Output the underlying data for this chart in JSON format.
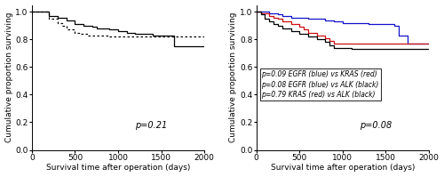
{
  "panel_A": {
    "title_annotation": "p=0.21",
    "solid_line": {
      "x": [
        0,
        50,
        200,
        300,
        400,
        500,
        600,
        700,
        750,
        900,
        1000,
        1100,
        1200,
        1300,
        1400,
        1500,
        1550,
        1650,
        1700,
        2000
      ],
      "y": [
        1.0,
        1.0,
        0.97,
        0.96,
        0.94,
        0.91,
        0.9,
        0.89,
        0.88,
        0.87,
        0.86,
        0.85,
        0.84,
        0.84,
        0.83,
        0.83,
        0.83,
        0.75,
        0.75,
        0.75
      ],
      "color": "black",
      "linestyle": "solid"
    },
    "dotted_line": {
      "x": [
        0,
        50,
        200,
        300,
        350,
        400,
        500,
        550,
        650,
        700,
        800,
        900,
        1000,
        1100,
        1200,
        1400,
        1500,
        1600,
        1700,
        2000
      ],
      "y": [
        1.0,
        1.0,
        0.95,
        0.92,
        0.9,
        0.87,
        0.85,
        0.84,
        0.83,
        0.83,
        0.83,
        0.82,
        0.82,
        0.82,
        0.82,
        0.82,
        0.82,
        0.82,
        0.82,
        0.82
      ],
      "color": "black",
      "linestyle": "dotted"
    },
    "xlabel": "Survival time after operation (days)",
    "ylabel": "Cumulative proportion surviving",
    "xlim": [
      0,
      2000
    ],
    "ylim": [
      0.0,
      1.05
    ],
    "yticks": [
      0.0,
      0.2,
      0.4,
      0.6,
      0.8,
      1.0
    ],
    "xticks": [
      0,
      500,
      1000,
      1500,
      2000
    ]
  },
  "panel_B": {
    "title_annotation": "p=0.08",
    "egfr_line": {
      "x": [
        0,
        50,
        150,
        250,
        300,
        400,
        500,
        600,
        700,
        800,
        900,
        1000,
        1100,
        1200,
        1300,
        1400,
        1500,
        1600,
        1650,
        1700,
        1750,
        2000
      ],
      "y": [
        1.0,
        1.0,
        0.99,
        0.98,
        0.97,
        0.96,
        0.96,
        0.95,
        0.95,
        0.94,
        0.93,
        0.92,
        0.92,
        0.92,
        0.91,
        0.91,
        0.91,
        0.9,
        0.83,
        0.83,
        0.77,
        0.77
      ],
      "color": "#1111cc",
      "linestyle": "solid",
      "label": "EGFR"
    },
    "kras_line": {
      "x": [
        0,
        50,
        150,
        200,
        250,
        300,
        400,
        500,
        550,
        600,
        700,
        800,
        850,
        900,
        1000,
        1100,
        1200,
        1400,
        1600,
        1700,
        2000
      ],
      "y": [
        1.0,
        0.99,
        0.97,
        0.96,
        0.95,
        0.93,
        0.91,
        0.89,
        0.87,
        0.85,
        0.83,
        0.81,
        0.79,
        0.77,
        0.77,
        0.77,
        0.77,
        0.77,
        0.77,
        0.77,
        0.77
      ],
      "color": "#cc1111",
      "linestyle": "solid",
      "label": "KRAS"
    },
    "alk_line": {
      "x": [
        0,
        50,
        100,
        150,
        200,
        250,
        300,
        400,
        500,
        600,
        700,
        800,
        850,
        900,
        1000,
        1100,
        1200,
        1400,
        1600,
        1700,
        2000
      ],
      "y": [
        1.0,
        0.98,
        0.95,
        0.93,
        0.91,
        0.9,
        0.88,
        0.86,
        0.84,
        0.82,
        0.8,
        0.78,
        0.76,
        0.74,
        0.74,
        0.73,
        0.73,
        0.73,
        0.73,
        0.73,
        0.73
      ],
      "color": "black",
      "linestyle": "solid",
      "label": "ALK"
    },
    "legend_lines": [
      "p=0.09 EGFR (blue) vs KRAS (red)",
      "p=0.08 EGFR (blue) vs ALK (black)",
      "p=0.79 KRAS (red) vs ALK (black)"
    ],
    "xlabel": "Survival time after operation (days)",
    "ylabel": "Cumulative proportion surviving",
    "xlim": [
      0,
      2000
    ],
    "ylim": [
      0.0,
      1.05
    ],
    "yticks": [
      0.0,
      0.2,
      0.4,
      0.6,
      0.8,
      1.0
    ],
    "xticks": [
      0,
      500,
      1000,
      1500,
      2000
    ]
  },
  "background_color": "#ffffff",
  "fontsize": 6.5
}
